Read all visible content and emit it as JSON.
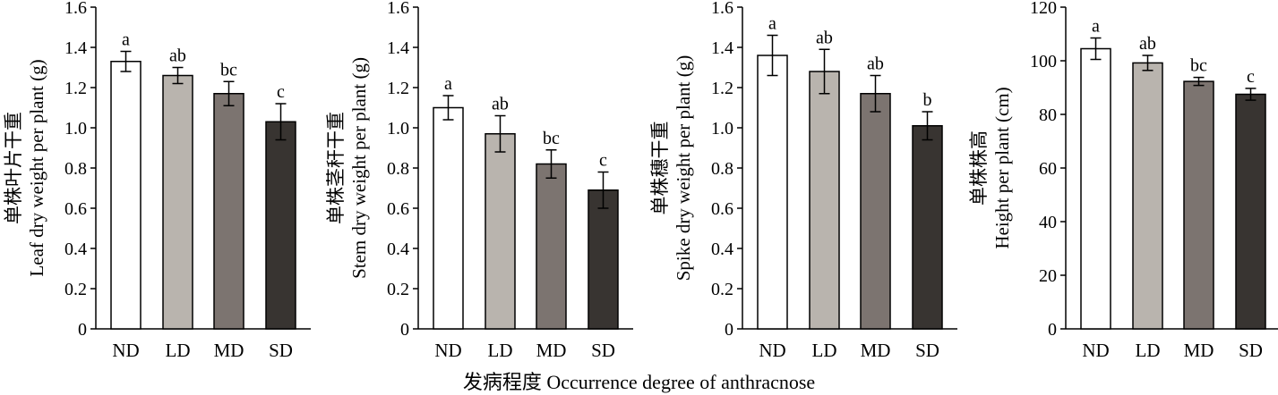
{
  "figure": {
    "xlabel": "发病程度 Occurrence degree of anthracnose",
    "bar_colors": [
      "#ffffff",
      "#b9b4ae",
      "#7c7470",
      "#383431"
    ]
  },
  "chart_data": [
    {
      "type": "bar",
      "categories": [
        "ND",
        "LD",
        "MD",
        "SD"
      ],
      "values": [
        1.33,
        1.26,
        1.17,
        1.03
      ],
      "errors": [
        0.05,
        0.04,
        0.06,
        0.09
      ],
      "significance": [
        "a",
        "ab",
        "bc",
        "c"
      ],
      "ylabel_cn": "单株叶片干重",
      "ylabel_en": "Leaf dry weight per plant (g)",
      "ylim": [
        0,
        1.6
      ],
      "yticks": [
        "0",
        "0.2",
        "0.4",
        "0.6",
        "0.8",
        "1.0",
        "1.2",
        "1.4",
        "1.6"
      ]
    },
    {
      "type": "bar",
      "categories": [
        "ND",
        "LD",
        "MD",
        "SD"
      ],
      "values": [
        1.1,
        0.97,
        0.82,
        0.69
      ],
      "errors": [
        0.06,
        0.09,
        0.07,
        0.09
      ],
      "significance": [
        "a",
        "ab",
        "bc",
        "c"
      ],
      "ylabel_cn": "单株茎秆干重",
      "ylabel_en": "Stem dry weight per plant (g)",
      "ylim": [
        0,
        1.6
      ],
      "yticks": [
        "0",
        "0.2",
        "0.4",
        "0.6",
        "0.8",
        "1.0",
        "1.2",
        "1.4",
        "1.6"
      ]
    },
    {
      "type": "bar",
      "categories": [
        "ND",
        "LD",
        "MD",
        "SD"
      ],
      "values": [
        1.36,
        1.28,
        1.17,
        1.01
      ],
      "errors": [
        0.1,
        0.11,
        0.09,
        0.07
      ],
      "significance": [
        "a",
        "ab",
        "ab",
        "b"
      ],
      "ylabel_cn": "单株穗干重",
      "ylabel_en": "Spike dry weight per plant (g)",
      "ylim": [
        0,
        1.6
      ],
      "yticks": [
        "0",
        "0.2",
        "0.4",
        "0.6",
        "0.8",
        "1.0",
        "1.2",
        "1.4",
        "1.6"
      ]
    },
    {
      "type": "bar",
      "categories": [
        "ND",
        "LD",
        "MD",
        "SD"
      ],
      "values": [
        104.5,
        99.2,
        92.3,
        87.5
      ],
      "errors": [
        4.0,
        2.8,
        1.5,
        2.2
      ],
      "significance": [
        "a",
        "ab",
        "bc",
        "c"
      ],
      "ylabel_cn": "单株株高",
      "ylabel_en": "Height per plant (cm)",
      "ylim": [
        0,
        120
      ],
      "yticks": [
        "0",
        "20",
        "40",
        "60",
        "80",
        "100",
        "120"
      ]
    }
  ]
}
